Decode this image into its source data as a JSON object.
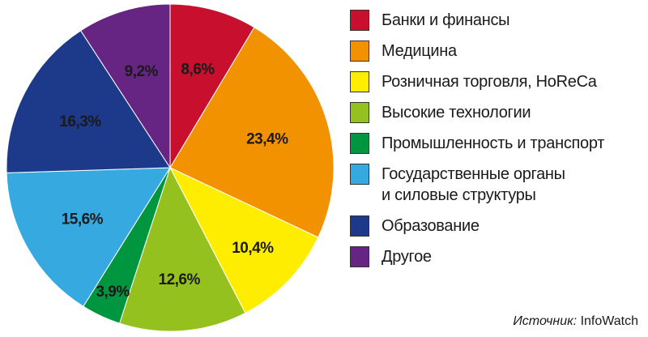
{
  "chart_data": {
    "type": "pie",
    "slices": [
      {
        "label": "Банки и финансы",
        "value": 8.6,
        "display": "8,6%",
        "color": "#c8102e"
      },
      {
        "label": "Медицина",
        "value": 23.4,
        "display": "23,4%",
        "color": "#f39200"
      },
      {
        "label": "Розничная торговля, HoReCa",
        "value": 10.4,
        "display": "10,4%",
        "color": "#ffed00"
      },
      {
        "label": "Высокие технологии",
        "value": 12.6,
        "display": "12,6%",
        "color": "#95c11f"
      },
      {
        "label": "Промышленность и транспорт",
        "value": 3.9,
        "display": "3,9%",
        "color": "#009640"
      },
      {
        "label": "Государственные органы\nи силовые структуры",
        "value": 15.6,
        "display": "15,6%",
        "color": "#36a9e1"
      },
      {
        "label": "Образование",
        "value": 16.3,
        "display": "16,3%",
        "color": "#1d3a8a"
      },
      {
        "label": "Другое",
        "value": 9.2,
        "display": "9,2%",
        "color": "#662483"
      }
    ],
    "start_angle": "top (12 o'clock)",
    "direction": "clockwise",
    "legend_position": "right"
  },
  "source": {
    "label": "Источник:",
    "value": "InfoWatch"
  }
}
